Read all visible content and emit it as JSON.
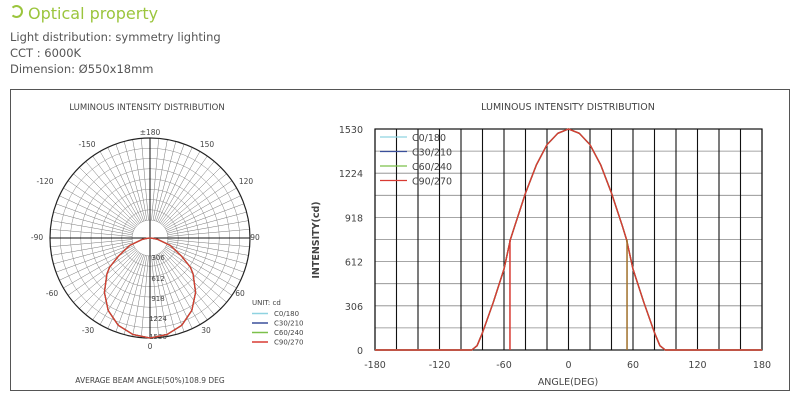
{
  "header": {
    "title": "Optical property",
    "icon": "circle-arrow-icon",
    "color": "#9bc53d"
  },
  "info": [
    "Light distribution: symmetry lighting",
    "CCT : 6000K",
    "Dimension: Ø550x18mm"
  ],
  "chart_data": [
    {
      "type": "polar",
      "title": "LUMINOUS INTENSITY DISTRIBUTION",
      "angle_labels": [
        "±180",
        "-150",
        "150",
        "-120",
        "120",
        "-90",
        "90",
        "-60",
        "60",
        "-30",
        "30",
        "0"
      ],
      "radial_labels": [
        "306",
        "612",
        "918",
        "1224",
        "1530"
      ],
      "rmax": 1530,
      "unit_label": "UNIT: cd",
      "footer": "AVERAGE BEAM ANGLE(50%)108.9 DEG",
      "series": [
        {
          "name": "C0/180",
          "color": "#8fd3e0"
        },
        {
          "name": "C30/210",
          "color": "#3a4f9a"
        },
        {
          "name": "C60/240",
          "color": "#7cc04a"
        },
        {
          "name": "C90/270",
          "color": "#d83a32"
        }
      ]
    },
    {
      "type": "line",
      "title": "LUMINOUS INTENSITY DISTRIBUTION",
      "xlabel": "ANGLE(DEG)",
      "ylabel": "INTENSITY(cd)",
      "xlim": [
        -180,
        180
      ],
      "ylim": [
        0,
        1530
      ],
      "xticks": [
        -180,
        -120,
        -60,
        0,
        60,
        120,
        180
      ],
      "yticks": [
        0,
        306,
        612,
        918,
        1224,
        1530
      ],
      "grid": true,
      "legend": "top-left",
      "x": [
        -180,
        -90,
        -85,
        -80,
        -70,
        -60,
        -54,
        -50,
        -40,
        -30,
        -20,
        -10,
        0,
        10,
        20,
        30,
        40,
        50,
        54,
        60,
        70,
        80,
        85,
        90,
        180
      ],
      "series": [
        {
          "name": "C0/180",
          "color": "#8fd3e0",
          "values": [
            0,
            0,
            30,
            120,
            330,
            560,
            765,
            860,
            1086,
            1280,
            1421,
            1500,
            1530,
            1500,
            1421,
            1280,
            1086,
            860,
            765,
            560,
            330,
            120,
            30,
            0,
            0
          ]
        },
        {
          "name": "C30/210",
          "color": "#3a4f9a",
          "values": [
            0,
            0,
            30,
            120,
            330,
            560,
            765,
            860,
            1086,
            1280,
            1421,
            1500,
            1530,
            1500,
            1421,
            1280,
            1086,
            860,
            765,
            560,
            330,
            120,
            30,
            0,
            0
          ]
        },
        {
          "name": "C60/240",
          "color": "#7cc04a",
          "values": [
            0,
            0,
            30,
            120,
            330,
            560,
            765,
            860,
            1086,
            1280,
            1421,
            1500,
            1530,
            1500,
            1421,
            1280,
            1086,
            860,
            765,
            560,
            330,
            120,
            30,
            0,
            0
          ]
        },
        {
          "name": "C90/270",
          "color": "#d83a32",
          "values": [
            0,
            0,
            30,
            120,
            330,
            560,
            765,
            860,
            1086,
            1280,
            1421,
            1500,
            1530,
            1500,
            1421,
            1280,
            1086,
            860,
            765,
            560,
            330,
            120,
            30,
            0,
            0
          ]
        }
      ],
      "half_max_markers": {
        "angles": [
          -54.45,
          54.45
        ],
        "value": 765,
        "colors": [
          "#d83a32",
          "#a0702a"
        ]
      }
    }
  ]
}
